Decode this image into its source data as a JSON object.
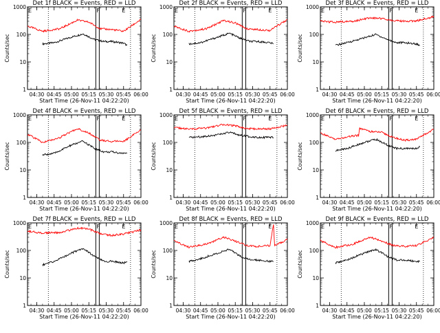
{
  "figure": {
    "xlabel": "Start Time (26-Nov-11 04:22:20)",
    "ylabel": "Counts/sec",
    "legend_text": "BLACK = Events, RED = LLD",
    "colors": {
      "events": "#000000",
      "lld": "#ff0000",
      "axes": "#000000",
      "background": "#ffffff"
    }
  },
  "chart_data": [
    {
      "type": "line",
      "title": "Det 1f BLACK = Events, RED = LLD",
      "ylabel": "Counts/sec",
      "xlabel": "Start Time (26-Nov-11 04:22:20)",
      "y_scale": "log",
      "ylim": [
        1,
        1000
      ],
      "y_ticks": [
        "1",
        "10",
        "100",
        "1000"
      ],
      "x_ticks": [
        "04:30",
        "04:45",
        "05:00",
        "05:15",
        "05:30",
        "05:45",
        "06:00"
      ],
      "x_domain": [
        "04:22",
        "06:00"
      ],
      "dotted_verticals": [
        "04:40",
        "05:51"
      ],
      "solid_verticals": [
        "05:21",
        "05:24"
      ],
      "markers": [
        {
          "label": "F",
          "time": "05:21"
        },
        {
          "label": "E",
          "time": "05:43"
        }
      ],
      "series": [
        {
          "name": "Events",
          "color": "#000000",
          "x": [
            "04:35",
            "04:45",
            "05:00",
            "05:10",
            "05:20",
            "05:28",
            "05:35",
            "05:45",
            "05:48"
          ],
          "y": [
            45,
            50,
            80,
            105,
            65,
            55,
            55,
            48,
            40
          ]
        },
        {
          "name": "LLD",
          "color": "#ff0000",
          "x": [
            "04:22",
            "04:35",
            "04:50",
            "05:05",
            "05:15",
            "05:25",
            "05:35",
            "05:45",
            "06:00"
          ],
          "y": [
            200,
            130,
            160,
            330,
            280,
            160,
            150,
            130,
            350
          ]
        }
      ]
    },
    {
      "type": "line",
      "title": "Det 2f BLACK = Events, RED = LLD",
      "ylabel": "Counts/sec",
      "xlabel": "Start Time (26-Nov-11 04:22:20)",
      "y_scale": "log",
      "ylim": [
        1,
        1000
      ],
      "y_ticks": [
        "1",
        "10",
        "100",
        "1000"
      ],
      "x_ticks": [
        "04:30",
        "04:45",
        "05:00",
        "05:15",
        "05:30",
        "05:45",
        "06:00"
      ],
      "x_domain": [
        "04:22",
        "06:00"
      ],
      "dotted_verticals": [
        "04:40",
        "05:51"
      ],
      "solid_verticals": [
        "05:21",
        "05:24"
      ],
      "markers": [
        {
          "label": "F",
          "time": "05:21"
        },
        {
          "label": "E",
          "time": "05:43"
        }
      ],
      "series": [
        {
          "name": "Events",
          "color": "#000000",
          "x": [
            "04:35",
            "04:45",
            "05:00",
            "05:10",
            "05:20",
            "05:28",
            "05:35",
            "05:45",
            "05:48"
          ],
          "y": [
            45,
            50,
            80,
            110,
            70,
            55,
            55,
            50,
            45
          ]
        },
        {
          "name": "LLD",
          "color": "#ff0000",
          "x": [
            "04:22",
            "04:35",
            "04:50",
            "05:05",
            "05:15",
            "05:25",
            "05:35",
            "05:45",
            "06:00"
          ],
          "y": [
            200,
            130,
            160,
            320,
            260,
            160,
            150,
            140,
            350
          ]
        }
      ]
    },
    {
      "type": "line",
      "title": "Det 3f BLACK = Events, RED = LLD",
      "ylabel": "Counts/sec",
      "xlabel": "Start Time (26-Nov-11 04:22:20)",
      "y_scale": "log",
      "ylim": [
        1,
        1000
      ],
      "y_ticks": [
        "1",
        "10",
        "100",
        "1000"
      ],
      "x_ticks": [
        "04:30",
        "04:45",
        "05:00",
        "05:15",
        "05:30",
        "05:45",
        "06:00"
      ],
      "x_domain": [
        "04:22",
        "06:00"
      ],
      "dotted_verticals": [
        "04:40",
        "05:51"
      ],
      "solid_verticals": [
        "05:21",
        "05:24"
      ],
      "markers": [
        {
          "label": "F",
          "time": "05:21"
        },
        {
          "label": "E",
          "time": "05:43"
        }
      ],
      "series": [
        {
          "name": "Events",
          "color": "#000000",
          "x": [
            "04:35",
            "04:45",
            "05:00",
            "05:10",
            "05:20",
            "05:28",
            "05:35",
            "05:45",
            "05:48"
          ],
          "y": [
            40,
            50,
            75,
            100,
            65,
            50,
            50,
            45,
            40
          ]
        },
        {
          "name": "LLD",
          "color": "#ff0000",
          "x": [
            "04:22",
            "04:35",
            "04:50",
            "05:05",
            "05:15",
            "05:25",
            "05:35",
            "05:45",
            "06:00"
          ],
          "y": [
            300,
            280,
            300,
            400,
            380,
            320,
            300,
            310,
            450
          ]
        }
      ]
    },
    {
      "type": "line",
      "title": "Det 4f BLACK = Events, RED = LLD",
      "ylabel": "Counts/sec",
      "xlabel": "Start Time (26-Nov-11 04:22:20)",
      "y_scale": "log",
      "ylim": [
        1,
        1000
      ],
      "y_ticks": [
        "1",
        "10",
        "100",
        "1000"
      ],
      "x_ticks": [
        "04:30",
        "04:45",
        "05:00",
        "05:15",
        "05:30",
        "05:45",
        "06:00"
      ],
      "x_domain": [
        "04:22",
        "06:00"
      ],
      "dotted_verticals": [
        "04:40",
        "05:51"
      ],
      "solid_verticals": [
        "05:21",
        "05:24"
      ],
      "markers": [
        {
          "label": "F",
          "time": "05:21"
        },
        {
          "label": "E",
          "time": "05:43"
        }
      ],
      "series": [
        {
          "name": "Events",
          "color": "#000000",
          "x": [
            "04:35",
            "04:45",
            "05:00",
            "05:10",
            "05:20",
            "05:28",
            "05:35",
            "05:45",
            "05:48"
          ],
          "y": [
            35,
            40,
            80,
            110,
            60,
            45,
            45,
            40,
            40
          ]
        },
        {
          "name": "LLD",
          "color": "#ff0000",
          "x": [
            "04:22",
            "04:35",
            "04:50",
            "05:05",
            "05:15",
            "05:25",
            "05:35",
            "05:45",
            "06:00"
          ],
          "y": [
            200,
            100,
            150,
            320,
            220,
            120,
            110,
            110,
            280
          ]
        }
      ]
    },
    {
      "type": "line",
      "title": "Det 5f BLACK = Events, RED = LLD",
      "ylabel": "Counts/sec",
      "xlabel": "Start Time (26-Nov-11 04:22:20)",
      "y_scale": "log",
      "ylim": [
        1,
        1000
      ],
      "y_ticks": [
        "1",
        "10",
        "100",
        "1000"
      ],
      "x_ticks": [
        "04:30",
        "04:45",
        "05:00",
        "05:15",
        "05:30",
        "05:45",
        "06:00"
      ],
      "x_domain": [
        "04:22",
        "06:00"
      ],
      "dotted_verticals": [
        "04:40",
        "05:51"
      ],
      "solid_verticals": [
        "05:21",
        "05:24"
      ],
      "markers": [
        {
          "label": "F",
          "time": "05:21"
        },
        {
          "label": "E",
          "time": "05:43"
        }
      ],
      "series": [
        {
          "name": "Events",
          "color": "#000000",
          "x": [
            "04:35",
            "04:45",
            "05:00",
            "05:10",
            "05:20",
            "05:28",
            "05:35",
            "05:45",
            "05:48"
          ],
          "y": [
            150,
            160,
            190,
            230,
            180,
            160,
            155,
            150,
            150
          ]
        },
        {
          "name": "LLD",
          "color": "#ff0000",
          "x": [
            "04:22",
            "04:35",
            "04:50",
            "05:05",
            "05:15",
            "05:25",
            "05:35",
            "05:45",
            "06:00"
          ],
          "y": [
            350,
            300,
            330,
            450,
            400,
            320,
            310,
            310,
            420
          ]
        }
      ]
    },
    {
      "type": "line",
      "title": "Det 6f BLACK = Events, RED = LLD",
      "ylabel": "Counts/sec",
      "xlabel": "Start Time (26-Nov-11 04:22:20)",
      "y_scale": "log",
      "ylim": [
        1,
        1000
      ],
      "y_ticks": [
        "1",
        "10",
        "100",
        "1000"
      ],
      "x_ticks": [
        "04:30",
        "04:45",
        "05:00",
        "05:15",
        "05:30",
        "05:45",
        "06:00"
      ],
      "x_domain": [
        "04:22",
        "06:00"
      ],
      "dotted_verticals": [
        "04:40",
        "05:51"
      ],
      "solid_verticals": [
        "05:21",
        "05:24"
      ],
      "markers": [
        {
          "label": "F",
          "time": "05:21"
        },
        {
          "label": "E",
          "time": "05:43"
        }
      ],
      "series": [
        {
          "name": "Events",
          "color": "#000000",
          "x": [
            "04:35",
            "04:45",
            "05:00",
            "05:10",
            "05:20",
            "05:28",
            "05:35",
            "05:45",
            "05:48"
          ],
          "y": [
            50,
            60,
            100,
            130,
            80,
            60,
            60,
            60,
            70
          ]
        },
        {
          "name": "LLD",
          "color": "#ff0000",
          "x": [
            "04:22",
            "04:35",
            "04:50",
            "04:55",
            "04:56",
            "05:05",
            "05:15",
            "05:25",
            "05:35",
            "05:45",
            "06:00"
          ],
          "y": [
            220,
            130,
            170,
            180,
            330,
            250,
            230,
            150,
            120,
            130,
            300
          ]
        }
      ]
    },
    {
      "type": "line",
      "title": "Det 7f BLACK = Events, RED = LLD",
      "ylabel": "Counts/sec",
      "xlabel": "Start Time (26-Nov-11 04:22:20)",
      "y_scale": "log",
      "ylim": [
        1,
        1000
      ],
      "y_ticks": [
        "1",
        "10",
        "100",
        "1000"
      ],
      "x_ticks": [
        "04:30",
        "04:45",
        "05:00",
        "05:15",
        "05:30",
        "05:45",
        "06:00"
      ],
      "x_domain": [
        "04:22",
        "06:00"
      ],
      "dotted_verticals": [
        "04:40",
        "05:51"
      ],
      "solid_verticals": [
        "05:21",
        "05:24"
      ],
      "markers": [
        {
          "label": "F",
          "time": "05:21"
        },
        {
          "label": "E",
          "time": "05:43"
        }
      ],
      "series": [
        {
          "name": "Events",
          "color": "#000000",
          "x": [
            "04:35",
            "04:45",
            "05:00",
            "05:10",
            "05:20",
            "05:28",
            "05:35",
            "05:45",
            "05:48"
          ],
          "y": [
            30,
            40,
            80,
            120,
            60,
            40,
            40,
            35,
            40
          ]
        },
        {
          "name": "LLD",
          "color": "#ff0000",
          "x": [
            "04:22",
            "04:35",
            "04:50",
            "05:05",
            "05:15",
            "05:25",
            "05:35",
            "05:45",
            "06:00"
          ],
          "y": [
            500,
            430,
            450,
            650,
            600,
            400,
            350,
            400,
            550
          ]
        }
      ]
    },
    {
      "type": "line",
      "title": "Det 8f BLACK = Events, RED = LLD",
      "ylabel": "Counts/sec",
      "xlabel": "Start Time (26-Nov-11 04:22:20)",
      "y_scale": "log",
      "ylim": [
        1,
        1000
      ],
      "y_ticks": [
        "1",
        "10",
        "100",
        "1000"
      ],
      "x_ticks": [
        "04:30",
        "04:45",
        "05:00",
        "05:15",
        "05:30",
        "05:45",
        "06:00"
      ],
      "x_domain": [
        "04:22",
        "06:00"
      ],
      "dotted_verticals": [
        "04:40",
        "05:51"
      ],
      "solid_verticals": [
        "05:21",
        "05:24"
      ],
      "markers": [
        {
          "label": "F",
          "time": "05:21"
        },
        {
          "label": "E",
          "time": "05:43"
        }
      ],
      "series": [
        {
          "name": "Events",
          "color": "#000000",
          "x": [
            "04:35",
            "04:45",
            "05:00",
            "05:10",
            "05:20",
            "05:28",
            "05:35",
            "05:45",
            "05:48"
          ],
          "y": [
            40,
            50,
            80,
            110,
            60,
            45,
            45,
            40,
            40
          ]
        },
        {
          "name": "LLD",
          "color": "#ff0000",
          "x": [
            "04:22",
            "04:35",
            "04:50",
            "05:05",
            "05:15",
            "05:25",
            "05:35",
            "05:45",
            "05:48",
            "05:49",
            "06:00"
          ],
          "y": [
            220,
            130,
            170,
            300,
            220,
            150,
            140,
            150,
            900,
            150,
            250
          ]
        }
      ]
    },
    {
      "type": "line",
      "title": "Det 9f BLACK = Events, RED = LLD",
      "ylabel": "Counts/sec",
      "xlabel": "Start Time (26-Nov-11 04:22:20)",
      "y_scale": "log",
      "ylim": [
        1,
        1000
      ],
      "y_ticks": [
        "1",
        "10",
        "100",
        "1000"
      ],
      "x_ticks": [
        "04:30",
        "04:45",
        "05:00",
        "05:15",
        "05:30",
        "05:45",
        "06:00"
      ],
      "x_domain": [
        "04:22",
        "06:00"
      ],
      "dotted_verticals": [
        "04:40",
        "05:51"
      ],
      "solid_verticals": [
        "05:21",
        "05:24"
      ],
      "markers": [
        {
          "label": "F",
          "time": "05:21"
        },
        {
          "label": "E",
          "time": "05:43"
        }
      ],
      "series": [
        {
          "name": "Events",
          "color": "#000000",
          "x": [
            "04:35",
            "04:45",
            "05:00",
            "05:10",
            "05:20",
            "05:28",
            "05:35",
            "05:45",
            "05:48"
          ],
          "y": [
            35,
            45,
            80,
            110,
            60,
            45,
            45,
            40,
            40
          ]
        },
        {
          "name": "LLD",
          "color": "#ff0000",
          "x": [
            "04:22",
            "04:35",
            "04:50",
            "05:05",
            "05:15",
            "05:25",
            "05:35",
            "05:45",
            "06:00"
          ],
          "y": [
            230,
            130,
            170,
            300,
            220,
            150,
            140,
            150,
            300
          ]
        }
      ]
    }
  ]
}
